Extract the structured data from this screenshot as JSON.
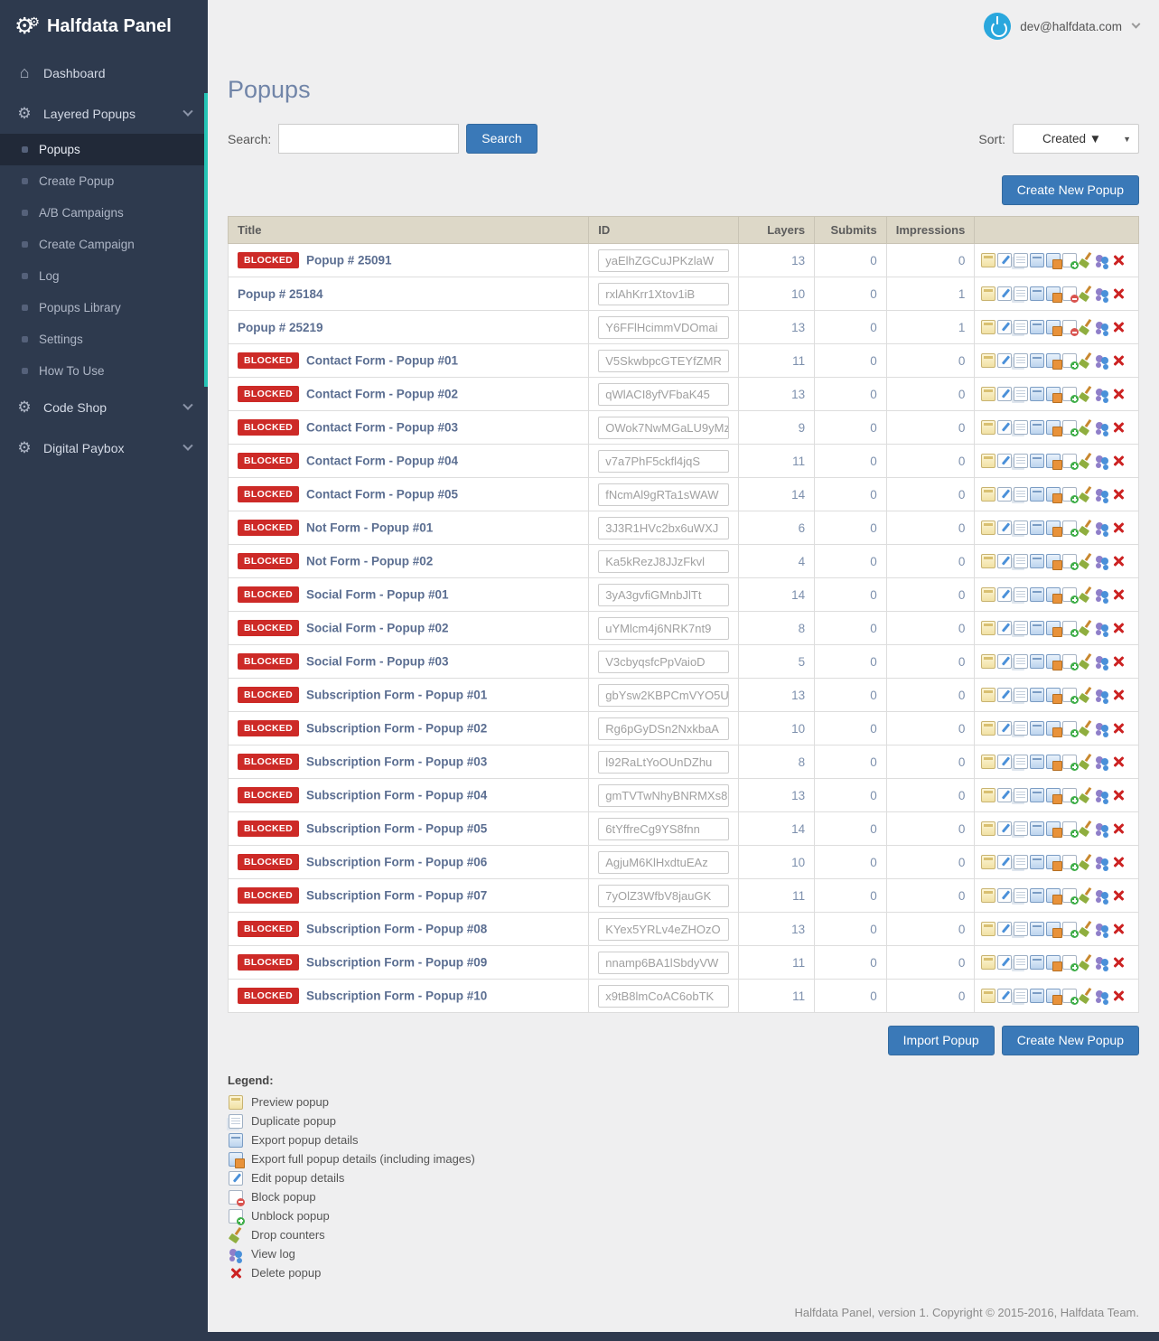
{
  "app": {
    "brand": "Halfdata Panel",
    "user_email": "dev@halfdata.com"
  },
  "colors": {
    "accent_blue": "#3a79b8",
    "blocked_red": "#cd2a27",
    "sidebar_bg": "#2e3a4e",
    "teal_accent": "#25c4b5",
    "table_header_bg": "#ddd8c8"
  },
  "sidebar": {
    "items": [
      {
        "label": "Dashboard"
      },
      {
        "label": "Layered Popups",
        "children": [
          "Popups",
          "Create Popup",
          "A/B Campaigns",
          "Create Campaign",
          "Log",
          "Popups Library",
          "Settings",
          "How To Use"
        ],
        "active_child": "Popups"
      },
      {
        "label": "Code Shop"
      },
      {
        "label": "Digital Paybox"
      }
    ]
  },
  "page": {
    "title": "Popups"
  },
  "search": {
    "label": "Search:",
    "value": "",
    "placeholder": "",
    "button": "Search"
  },
  "sort": {
    "label": "Sort:",
    "selected": "Created ▼"
  },
  "buttons": {
    "create_new_popup": "Create New Popup",
    "import_popup": "Import Popup"
  },
  "table": {
    "headers": [
      "Title",
      "ID",
      "Layers",
      "Submits",
      "Impressions",
      ""
    ],
    "blocked_label": "BLOCKED",
    "row_actions": [
      "preview",
      "edit",
      "duplicate",
      "export",
      "export-full",
      "unblock",
      "drop",
      "log",
      "delete"
    ],
    "rows": [
      {
        "blocked": true,
        "title": "Popup # 25091",
        "id": "yaElhZGCuJPKzlaW",
        "layers": 13,
        "submits": 0,
        "impressions": 0
      },
      {
        "blocked": false,
        "title": "Popup # 25184",
        "id": "rxlAhKrr1Xtov1iB",
        "layers": 10,
        "submits": 0,
        "impressions": 1
      },
      {
        "blocked": false,
        "title": "Popup # 25219",
        "id": "Y6FFlHcimmVDOmai",
        "layers": 13,
        "submits": 0,
        "impressions": 1
      },
      {
        "blocked": true,
        "title": "Contact Form - Popup #01",
        "id": "V5SkwbpcGTEYfZMR",
        "layers": 11,
        "submits": 0,
        "impressions": 0
      },
      {
        "blocked": true,
        "title": "Contact Form - Popup #02",
        "id": "qWlACI8yfVFbaK45",
        "layers": 13,
        "submits": 0,
        "impressions": 0
      },
      {
        "blocked": true,
        "title": "Contact Form - Popup #03",
        "id": "OWok7NwMGaLU9yMz",
        "layers": 9,
        "submits": 0,
        "impressions": 0
      },
      {
        "blocked": true,
        "title": "Contact Form - Popup #04",
        "id": "v7a7PhF5ckfl4jqS",
        "layers": 11,
        "submits": 0,
        "impressions": 0
      },
      {
        "blocked": true,
        "title": "Contact Form - Popup #05",
        "id": "fNcmAl9gRTa1sWAW",
        "layers": 14,
        "submits": 0,
        "impressions": 0
      },
      {
        "blocked": true,
        "title": "Not Form - Popup #01",
        "id": "3J3R1HVc2bx6uWXJ",
        "layers": 6,
        "submits": 0,
        "impressions": 0
      },
      {
        "blocked": true,
        "title": "Not Form - Popup #02",
        "id": "Ka5kRezJ8JJzFkvl",
        "layers": 4,
        "submits": 0,
        "impressions": 0
      },
      {
        "blocked": true,
        "title": "Social Form - Popup #01",
        "id": "3yA3gvfiGMnbJlTt",
        "layers": 14,
        "submits": 0,
        "impressions": 0
      },
      {
        "blocked": true,
        "title": "Social Form - Popup #02",
        "id": "uYMlcm4j6NRK7nt9",
        "layers": 8,
        "submits": 0,
        "impressions": 0
      },
      {
        "blocked": true,
        "title": "Social Form - Popup #03",
        "id": "V3cbyqsfcPpVaioD",
        "layers": 5,
        "submits": 0,
        "impressions": 0
      },
      {
        "blocked": true,
        "title": "Subscription Form - Popup #01",
        "id": "gbYsw2KBPCmVYO5U",
        "layers": 13,
        "submits": 0,
        "impressions": 0
      },
      {
        "blocked": true,
        "title": "Subscription Form - Popup #02",
        "id": "Rg6pGyDSn2NxkbaA",
        "layers": 10,
        "submits": 0,
        "impressions": 0
      },
      {
        "blocked": true,
        "title": "Subscription Form - Popup #03",
        "id": "l92RaLtYoOUnDZhu",
        "layers": 8,
        "submits": 0,
        "impressions": 0
      },
      {
        "blocked": true,
        "title": "Subscription Form - Popup #04",
        "id": "gmTVTwNhyBNRMXs8",
        "layers": 13,
        "submits": 0,
        "impressions": 0
      },
      {
        "blocked": true,
        "title": "Subscription Form - Popup #05",
        "id": "6tYffreCg9YS8fnn",
        "layers": 14,
        "submits": 0,
        "impressions": 0
      },
      {
        "blocked": true,
        "title": "Subscription Form - Popup #06",
        "id": "AgjuM6KlHxdtuEAz",
        "layers": 10,
        "submits": 0,
        "impressions": 0
      },
      {
        "blocked": true,
        "title": "Subscription Form - Popup #07",
        "id": "7yOlZ3WfbV8jauGK",
        "layers": 11,
        "submits": 0,
        "impressions": 0
      },
      {
        "blocked": true,
        "title": "Subscription Form - Popup #08",
        "id": "KYex5YRLv4eZHOzO",
        "layers": 13,
        "submits": 0,
        "impressions": 0
      },
      {
        "blocked": true,
        "title": "Subscription Form - Popup #09",
        "id": "nnamp6BA1lSbdyVW",
        "layers": 11,
        "submits": 0,
        "impressions": 0
      },
      {
        "blocked": true,
        "title": "Subscription Form - Popup #10",
        "id": "x9tB8lmCoAC6obTK",
        "layers": 11,
        "submits": 0,
        "impressions": 0
      }
    ]
  },
  "legend": {
    "title": "Legend:",
    "items": [
      {
        "icon": "preview",
        "label": "Preview popup"
      },
      {
        "icon": "duplicate",
        "label": "Duplicate popup"
      },
      {
        "icon": "export",
        "label": "Export popup details"
      },
      {
        "icon": "export-full",
        "label": "Export full popup details (including images)"
      },
      {
        "icon": "edit",
        "label": "Edit popup details"
      },
      {
        "icon": "block",
        "label": "Block popup"
      },
      {
        "icon": "unblock",
        "label": "Unblock popup"
      },
      {
        "icon": "drop",
        "label": "Drop counters"
      },
      {
        "icon": "log",
        "label": "View log"
      },
      {
        "icon": "delete",
        "label": "Delete popup"
      }
    ]
  },
  "footer": {
    "text": "Halfdata Panel, version 1. Copyright © 2015-2016, Halfdata Team."
  }
}
